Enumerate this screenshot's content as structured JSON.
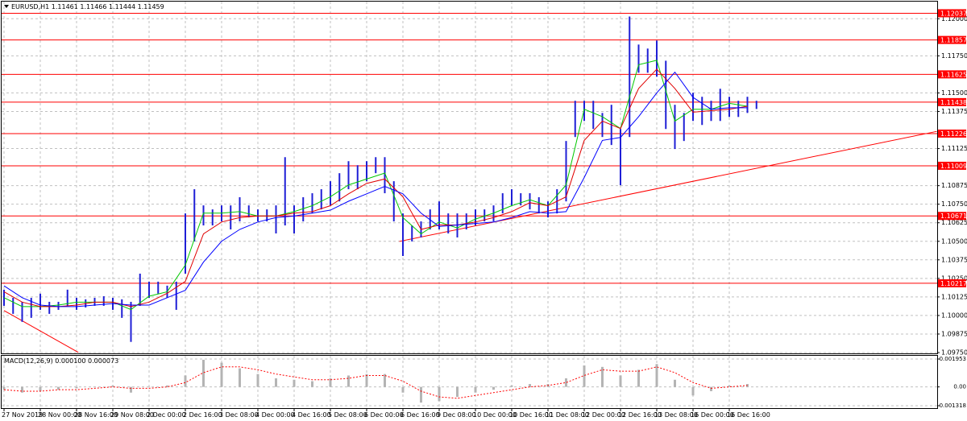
{
  "chart_data": [
    {
      "type": "bar-range",
      "title": "EURUSD,H1 1.11461 1.11466 1.11444 1.11459",
      "categories": [
        "27 Nov 2019",
        null,
        null,
        null,
        "28 Nov 00:00",
        null,
        null,
        null,
        "28 Nov 16:00",
        null,
        null,
        null,
        "29 Nov 08:00",
        null,
        null,
        null,
        "2 Dec 00:00",
        null,
        null,
        null,
        "2 Dec 16:00",
        null,
        null,
        null,
        "3 Dec 08:00",
        null,
        null,
        null,
        "4 Dec 00:00",
        null,
        null,
        null,
        "4 Dec 16:00",
        null,
        null,
        null,
        "5 Dec 08:00",
        null,
        null,
        null,
        "6 Dec 00:00",
        null,
        null,
        null,
        "6 Dec 16:00",
        null,
        null,
        null,
        "9 Dec 08:00",
        null,
        null,
        null,
        "10 Dec 00:00",
        null,
        null,
        null,
        "10 Dec 16:00",
        null,
        null,
        null,
        "11 Dec 08:00",
        null,
        null,
        null,
        "12 Dec 00:00",
        null,
        null,
        null,
        "12 Dec 16:00",
        null,
        null,
        null,
        "13 Dec 08:00",
        null,
        null,
        null,
        "16 Dec 00:00",
        null,
        null,
        null,
        "16 Dec 16:00",
        null,
        null,
        null
      ],
      "high": [
        1.10174,
        1.10119,
        1.10092,
        1.10119,
        1.10147,
        1.10092,
        1.10092,
        1.10174,
        1.10119,
        1.10109,
        1.10119,
        1.1013,
        1.10119,
        1.10109,
        1.10092,
        1.10282,
        1.10228,
        1.10228,
        1.10201,
        1.10228,
        1.10688,
        1.10851,
        1.10742,
        1.10715,
        1.10742,
        1.10742,
        1.10797,
        1.10742,
        1.10715,
        1.10715,
        1.10742,
        1.11067,
        1.10742,
        1.10797,
        1.10824,
        1.10851,
        1.10905,
        1.10959,
        1.1104,
        1.11013,
        1.1104,
        1.11067,
        1.11067,
        1.10905,
        1.10688,
        1.10607,
        1.10634,
        1.10715,
        1.10769,
        1.10688,
        1.10688,
        1.10688,
        1.10715,
        1.10715,
        1.10742,
        1.10824,
        1.10851,
        1.10824,
        1.10824,
        1.10797,
        1.10769,
        1.10851,
        1.11176,
        1.11447,
        1.11447,
        1.11447,
        1.11365,
        1.1142,
        1.11257,
        1.12015,
        1.11826,
        1.11799,
        1.11853,
        1.11717,
        1.1142,
        1.11365,
        1.11501,
        1.11474,
        1.11447,
        1.11528,
        1.11474,
        1.11447,
        1.11474,
        1.11447
      ],
      "low": [
        1.10065,
        1.10011,
        1.09957,
        1.09984,
        1.10038,
        1.10011,
        1.10038,
        1.10065,
        1.10038,
        1.10054,
        1.10065,
        1.10065,
        1.10038,
        1.09984,
        1.09822,
        1.10065,
        1.10119,
        1.10147,
        1.10119,
        1.10038,
        1.10282,
        1.10499,
        1.10607,
        1.10607,
        1.10634,
        1.1058,
        1.10634,
        1.10661,
        1.10634,
        1.10634,
        1.10553,
        1.10607,
        1.10553,
        1.10634,
        1.10688,
        1.10715,
        1.10742,
        1.10769,
        1.10851,
        1.10851,
        1.10905,
        1.10959,
        1.10824,
        1.10634,
        1.10401,
        1.10499,
        1.10526,
        1.1058,
        1.1058,
        1.10553,
        1.10526,
        1.1058,
        1.10607,
        1.10634,
        1.10634,
        1.10688,
        1.10742,
        1.10742,
        1.10715,
        1.10688,
        1.10661,
        1.10688,
        1.10769,
        1.11203,
        1.11311,
        1.11257,
        1.11203,
        1.11149,
        1.10878,
        1.11203,
        1.11636,
        1.11636,
        1.11609,
        1.11257,
        1.11122,
        1.11176,
        1.11311,
        1.11284,
        1.11311,
        1.11311,
        1.11338,
        1.11338,
        1.11365,
        1.11392
      ],
      "color": "#1f1fd6",
      "indicators": {
        "x": [
          0,
          2,
          4,
          6,
          8,
          10,
          12,
          14,
          16,
          18,
          20,
          22,
          24,
          26,
          28,
          30,
          32,
          34,
          36,
          38,
          40,
          42,
          44,
          46,
          48,
          50,
          52,
          54,
          56,
          58,
          60,
          62,
          64,
          66,
          68,
          70,
          72,
          74,
          76,
          78,
          80,
          82
        ],
        "series": [
          {
            "color": "#00c800",
            "values": [
              1.1012,
              1.1006,
              1.1006,
              1.1007,
              1.1009,
              1.1009,
              1.1009,
              1.1004,
              1.1013,
              1.1016,
              1.1034,
              1.1069,
              1.1069,
              1.107,
              1.1067,
              1.1067,
              1.107,
              1.1074,
              1.108,
              1.1088,
              1.1092,
              1.1096,
              1.1066,
              1.1055,
              1.1063,
              1.1059,
              1.1065,
              1.1069,
              1.1074,
              1.1078,
              1.1074,
              1.1088,
              1.1139,
              1.1134,
              1.1126,
              1.1169,
              1.1172,
              1.1131,
              1.1139,
              1.1139,
              1.1143,
              1.1141
            ]
          },
          {
            "color": "#e00000",
            "values": [
              1.1016,
              1.1009,
              1.1006,
              1.1006,
              1.1007,
              1.1009,
              1.1009,
              1.1006,
              1.1009,
              1.1015,
              1.1023,
              1.1055,
              1.1063,
              1.1066,
              1.1067,
              1.1067,
              1.1069,
              1.107,
              1.1074,
              1.1082,
              1.1089,
              1.1092,
              1.108,
              1.1058,
              1.1061,
              1.1061,
              1.1063,
              1.1066,
              1.107,
              1.1076,
              1.1074,
              1.108,
              1.1118,
              1.1131,
              1.1126,
              1.1153,
              1.1166,
              1.1153,
              1.1137,
              1.1138,
              1.1139,
              1.1141
            ]
          },
          {
            "color": "#0000ff",
            "values": [
              1.102,
              1.1012,
              1.1007,
              1.1006,
              1.1006,
              1.1007,
              1.1008,
              1.1007,
              1.1007,
              1.1012,
              1.1017,
              1.1036,
              1.105,
              1.1058,
              1.1063,
              1.1066,
              1.1067,
              1.1069,
              1.1071,
              1.1077,
              1.1082,
              1.1087,
              1.1082,
              1.1069,
              1.106,
              1.1061,
              1.1062,
              1.1063,
              1.1066,
              1.107,
              1.1069,
              1.107,
              1.1093,
              1.1118,
              1.112,
              1.1134,
              1.115,
              1.1164,
              1.1147,
              1.1139,
              1.114,
              1.114
            ]
          }
        ]
      },
      "levels": [
        1.12037,
        1.11857,
        1.11625,
        1.11438,
        1.11226,
        1.11009,
        1.10671,
        1.10217
      ],
      "level_color": "#ff0000",
      "trendlines": [
        {
          "color": "#ff0000",
          "x": [
            43.6,
            102.9
          ],
          "y": [
            1.10499,
            1.11241
          ]
        },
        {
          "color": "#ff0000",
          "x": [
            0,
            8.2
          ],
          "y": [
            1.10033,
            1.09751
          ]
        }
      ],
      "ylim": [
        1.0975,
        1.1211
      ],
      "yticks": [
        {
          "value": 1.12,
          "label": "1.12000"
        },
        {
          "value": 1.1175,
          "label": "1.11750"
        },
        {
          "value": 1.115,
          "label": "1.11500"
        },
        1.11375,
        1.11125,
        1.10875,
        {
          "value": 1.1075,
          "label": "1.10750"
        },
        1.10625,
        {
          "value": 1.105,
          "label": "1.10500"
        },
        1.10375,
        {
          "value": 1.1025,
          "label": "1.10250"
        },
        1.10125,
        {
          "value": 1.1,
          "label": "1.10000"
        },
        1.09875,
        {
          "value": 1.0975,
          "label": "1.09750"
        }
      ],
      "grid": true
    },
    {
      "type": "macd",
      "title": "MACD(12,26,9) 0.000100 0.000073",
      "x": [
        0,
        2,
        4,
        6,
        8,
        10,
        12,
        14,
        16,
        18,
        20,
        22,
        24,
        26,
        28,
        30,
        32,
        34,
        36,
        38,
        40,
        42,
        44,
        46,
        48,
        50,
        52,
        54,
        56,
        58,
        60,
        62,
        64,
        66,
        68,
        70,
        72,
        74,
        76,
        78,
        80,
        82
      ],
      "histogram": [
        -0.0002,
        -0.0004,
        -0.0003,
        -0.0002,
        -0.0001,
        0,
        0.0001,
        -0.0004,
        0,
        0.0001,
        0.0008,
        0.0019,
        0.0017,
        0.0013,
        0.0009,
        0.0006,
        0.0005,
        0.0004,
        0.0006,
        0.0008,
        0.0009,
        0.0009,
        -0.0004,
        -0.0011,
        -0.001,
        -0.0007,
        -0.0004,
        -0.0002,
        0.0001,
        0.0002,
        0.0002,
        0.0006,
        0.0015,
        0.0014,
        0.0008,
        0.0012,
        0.0016,
        0.0005,
        -0.0006,
        -0.0003,
        0.0001,
        0.0002
      ],
      "signal": [
        -0.0002,
        -0.0003,
        -0.0003,
        -0.0002,
        -0.0002,
        -0.0001,
        0,
        -0.0001,
        -0.0001,
        0,
        0.0003,
        0.001,
        0.0014,
        0.0014,
        0.0012,
        0.0009,
        0.0007,
        0.0005,
        0.0005,
        0.0006,
        0.0008,
        0.0008,
        0.0004,
        -0.0003,
        -0.0007,
        -0.0008,
        -0.0006,
        -0.0004,
        -0.0002,
        0,
        0.0001,
        0.0003,
        0.0008,
        0.0012,
        0.0011,
        0.0011,
        0.0014,
        0.001,
        0.0003,
        -0.0001,
        0,
        0.0001
      ],
      "histogram_color": "#b4b4b4",
      "signal_color": "#ff0000",
      "ylim": [
        -0.001318,
        0.001953
      ],
      "yticks": [
        0.001953,
        {
          "value": 0,
          "label": "0.00"
        },
        -0.001318
      ],
      "grid": true
    }
  ]
}
